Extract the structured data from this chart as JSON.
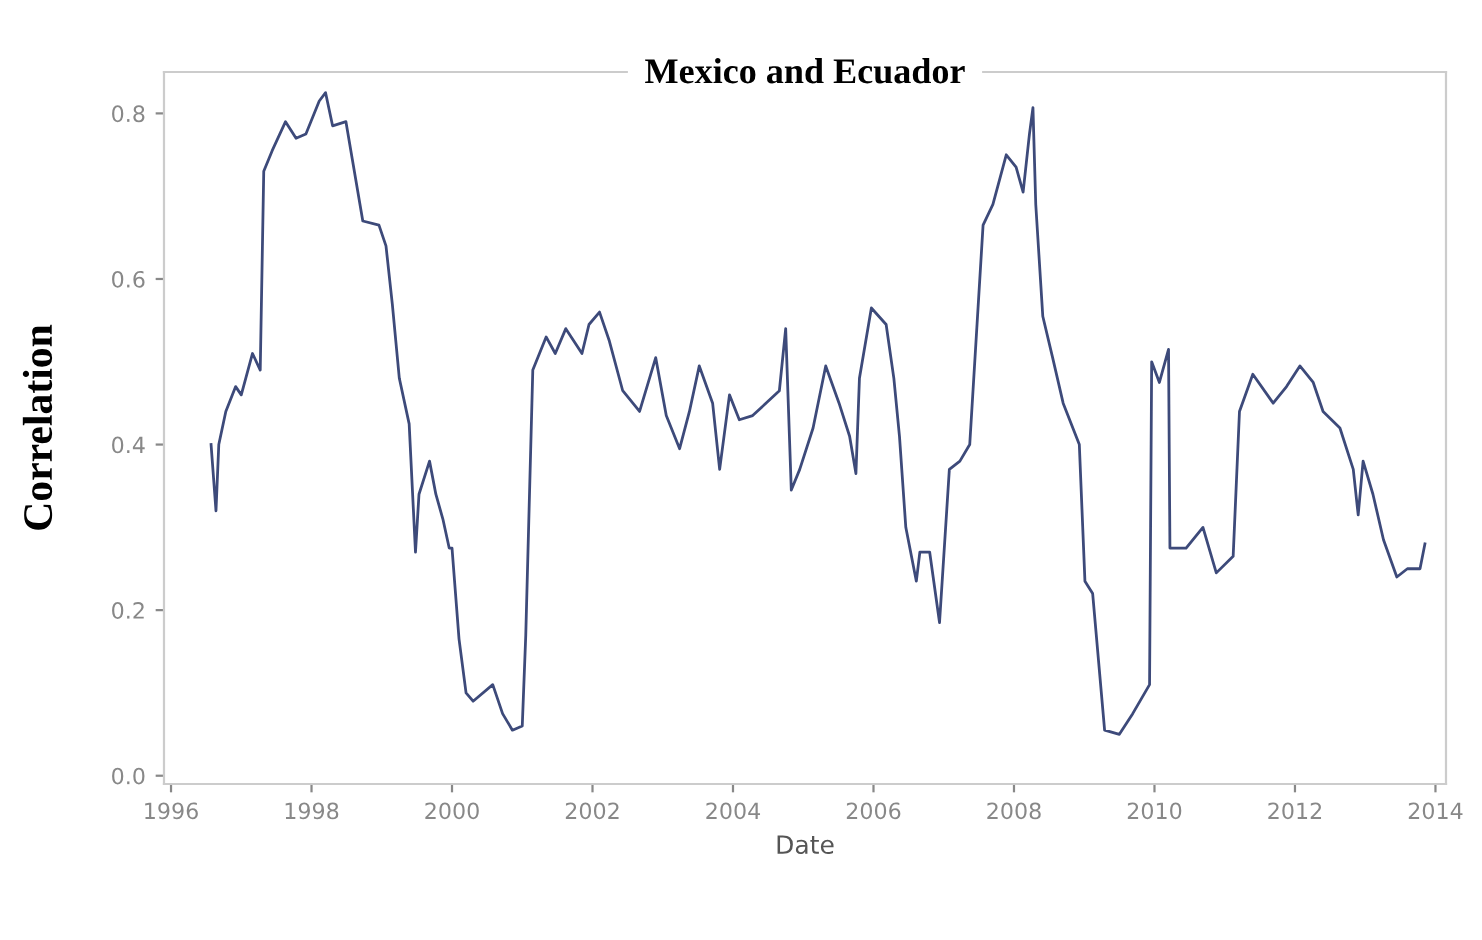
{
  "chart_data": {
    "type": "line",
    "title": "Mexico and Ecuador",
    "xlabel": "Date",
    "ylabel": "Correlation",
    "xlim": [
      1995.9,
      2014.15
    ],
    "ylim": [
      -0.01,
      0.85
    ],
    "xticks": [
      1996,
      1998,
      2000,
      2002,
      2004,
      2006,
      2008,
      2010,
      2012,
      2014
    ],
    "yticks": [
      {
        "value": 0,
        "label": "0.0"
      },
      {
        "value": 0.2,
        "label": "0.2"
      },
      {
        "value": 0.4,
        "label": "0.4"
      },
      {
        "value": 0.6,
        "label": "0.6"
      },
      {
        "value": 0.8,
        "label": "0.8"
      }
    ],
    "grid": false,
    "marker": "none",
    "line_style": "solid",
    "series": [
      {
        "color": "#3d4a7a",
        "x": [
          1996.57,
          1996.64,
          1996.68,
          1996.78,
          1996.92,
          1997.0,
          1997.16,
          1997.27,
          1997.32,
          1997.44,
          1997.63,
          1997.78,
          1997.92,
          1998.11,
          1998.2,
          1998.3,
          1998.49,
          1998.58,
          1998.73,
          1998.96,
          1999.06,
          1999.15,
          1999.25,
          1999.39,
          1999.48,
          1999.53,
          1999.68,
          1999.77,
          1999.87,
          1999.96,
          2000.0,
          2000.1,
          2000.2,
          2000.3,
          2000.58,
          2000.72,
          2000.86,
          2001.0,
          2001.05,
          2001.15,
          2001.34,
          2001.47,
          2001.62,
          2001.85,
          2001.95,
          2002.1,
          2002.24,
          2002.43,
          2002.67,
          2002.9,
          2003.05,
          2003.24,
          2003.38,
          2003.52,
          2003.71,
          2003.81,
          2003.95,
          2004.09,
          2004.28,
          2004.66,
          2004.75,
          2004.83,
          2004.95,
          2005.14,
          2005.32,
          2005.51,
          2005.66,
          2005.75,
          2005.8,
          2005.97,
          2006.18,
          2006.29,
          2006.37,
          2006.46,
          2006.61,
          2006.66,
          2006.8,
          2006.94,
          2007.08,
          2007.23,
          2007.37,
          2007.56,
          2007.7,
          2007.89,
          2008.03,
          2008.13,
          2008.22,
          2008.27,
          2008.31,
          2008.41,
          2008.55,
          2008.7,
          2008.93,
          2009.01,
          2009.12,
          2009.29,
          2009.5,
          2009.69,
          2009.93,
          2009.96,
          2010.07,
          2010.2,
          2010.22,
          2010.45,
          2010.69,
          2010.88,
          2011.12,
          2011.21,
          2011.4,
          2011.69,
          2011.88,
          2012.07,
          2012.26,
          2012.4,
          2012.64,
          2012.83,
          2012.9,
          2012.97,
          2013.11,
          2013.26,
          2013.45,
          2013.6,
          2013.78,
          2013.85
        ],
        "values": [
          0.4,
          0.32,
          0.4,
          0.44,
          0.47,
          0.46,
          0.51,
          0.49,
          0.73,
          0.755,
          0.79,
          0.77,
          0.775,
          0.815,
          0.825,
          0.785,
          0.79,
          0.745,
          0.67,
          0.665,
          0.64,
          0.57,
          0.48,
          0.425,
          0.27,
          0.34,
          0.38,
          0.34,
          0.31,
          0.275,
          0.275,
          0.165,
          0.1,
          0.09,
          0.11,
          0.075,
          0.055,
          0.06,
          0.17,
          0.49,
          0.53,
          0.51,
          0.54,
          0.51,
          0.545,
          0.56,
          0.525,
          0.465,
          0.44,
          0.505,
          0.435,
          0.395,
          0.44,
          0.495,
          0.45,
          0.37,
          0.46,
          0.43,
          0.435,
          0.465,
          0.54,
          0.345,
          0.37,
          0.42,
          0.495,
          0.45,
          0.41,
          0.365,
          0.48,
          0.565,
          0.545,
          0.48,
          0.41,
          0.3,
          0.235,
          0.27,
          0.27,
          0.185,
          0.37,
          0.38,
          0.4,
          0.665,
          0.69,
          0.75,
          0.735,
          0.705,
          0.775,
          0.807,
          0.69,
          0.555,
          0.505,
          0.45,
          0.4,
          0.235,
          0.22,
          0.055,
          0.05,
          0.075,
          0.11,
          0.5,
          0.475,
          0.515,
          0.275,
          0.275,
          0.3,
          0.245,
          0.265,
          0.44,
          0.485,
          0.45,
          0.47,
          0.495,
          0.475,
          0.44,
          0.42,
          0.37,
          0.315,
          0.38,
          0.34,
          0.285,
          0.24,
          0.25,
          0.25,
          0.28
        ]
      }
    ]
  }
}
